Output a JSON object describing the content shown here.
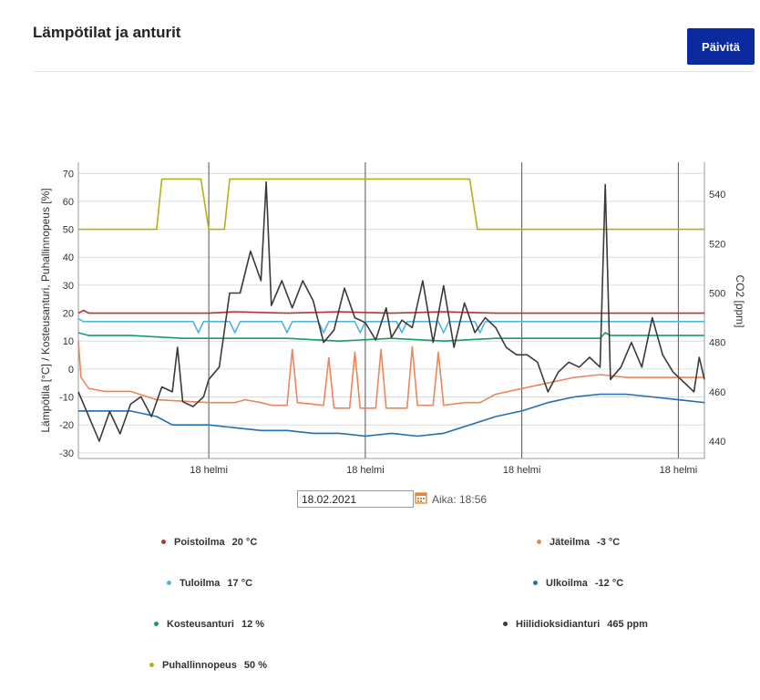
{
  "header": {
    "title": "Lämpötilat ja anturit",
    "refresh_label": "Päivitä"
  },
  "controls": {
    "date_value": "18.02.2021",
    "time_label": "Aika: 18:56",
    "calendar_icon": "calendar-icon"
  },
  "legend": [
    {
      "label": "Poistoilma",
      "value": "20 °C",
      "color": "#b5343c"
    },
    {
      "label": "Jäteilma",
      "value": "-3 °C",
      "color": "#f0845a"
    },
    {
      "label": "Tuloilma",
      "value": "17 °C",
      "color": "#4cb6e4"
    },
    {
      "label": "Ulkoilma",
      "value": "-12 °C",
      "color": "#1f6fb5"
    },
    {
      "label": "Kosteusanturi",
      "value": "12 %",
      "color": "#1a9a6a"
    },
    {
      "label": "Hiilidioksidianturi",
      "value": "465 ppm",
      "color": "#3a3a3a"
    },
    {
      "label": "Puhallinnopeus",
      "value": "50 %",
      "color": "#b5b01a"
    }
  ],
  "chart_data": {
    "type": "line",
    "ylabel_left": "Lämpötila [°C] / Kosteusanturi, Puhallinnopeus [%]",
    "ylabel_right": "CO2 [ppm]",
    "ylim_left": [
      -32,
      74
    ],
    "yticks_left": [
      -30,
      -20,
      -10,
      0,
      10,
      20,
      30,
      40,
      50,
      60,
      70
    ],
    "ylim_right": [
      433,
      553
    ],
    "yticks_right": [
      440,
      460,
      480,
      500,
      520,
      540
    ],
    "xlim": [
      0,
      120
    ],
    "xticks": [
      {
        "x": 25,
        "label": "18 helmi"
      },
      {
        "x": 55,
        "label": "18 helmi"
      },
      {
        "x": 85,
        "label": "18 helmi"
      },
      {
        "x": 115,
        "label": "18 helmi"
      }
    ],
    "series": [
      {
        "name": "Puhallinnopeus",
        "axis": "left",
        "color": "#b5b01a",
        "points": [
          [
            0,
            50
          ],
          [
            15,
            50
          ],
          [
            16,
            68
          ],
          [
            23.5,
            68
          ],
          [
            25,
            50
          ],
          [
            28,
            50
          ],
          [
            29,
            68
          ],
          [
            75,
            68
          ],
          [
            76.5,
            50
          ],
          [
            120,
            50
          ]
        ]
      },
      {
        "name": "Poistoilma",
        "axis": "left",
        "color": "#b5343c",
        "points": [
          [
            0,
            20
          ],
          [
            1,
            21
          ],
          [
            2,
            20
          ],
          [
            25,
            20
          ],
          [
            30,
            20.5
          ],
          [
            40,
            20
          ],
          [
            50,
            20.5
          ],
          [
            60,
            20
          ],
          [
            70,
            20.5
          ],
          [
            80,
            20
          ],
          [
            90,
            20
          ],
          [
            100,
            20
          ],
          [
            110,
            20
          ],
          [
            120,
            20
          ]
        ]
      },
      {
        "name": "Tuloilma",
        "axis": "left",
        "color": "#4cb6e4",
        "points": [
          [
            0,
            18
          ],
          [
            1,
            17
          ],
          [
            22,
            17
          ],
          [
            23,
            13
          ],
          [
            24,
            17
          ],
          [
            29,
            17
          ],
          [
            30,
            13
          ],
          [
            31,
            17
          ],
          [
            39,
            17
          ],
          [
            40,
            13
          ],
          [
            41,
            17
          ],
          [
            46,
            17
          ],
          [
            47,
            13
          ],
          [
            48,
            17
          ],
          [
            53,
            17
          ],
          [
            54,
            13
          ],
          [
            55,
            17
          ],
          [
            61,
            17
          ],
          [
            62,
            13
          ],
          [
            63,
            17
          ],
          [
            69,
            17
          ],
          [
            70,
            13
          ],
          [
            71,
            17
          ],
          [
            76,
            17
          ],
          [
            77,
            13
          ],
          [
            78,
            17
          ],
          [
            120,
            17
          ]
        ]
      },
      {
        "name": "Kosteusanturi",
        "axis": "left",
        "color": "#1a9a6a",
        "points": [
          [
            0,
            13
          ],
          [
            2,
            12
          ],
          [
            10,
            12
          ],
          [
            20,
            11
          ],
          [
            30,
            11
          ],
          [
            40,
            11
          ],
          [
            50,
            10
          ],
          [
            60,
            11
          ],
          [
            70,
            10
          ],
          [
            80,
            11
          ],
          [
            90,
            11
          ],
          [
            100,
            11
          ],
          [
            101,
            13
          ],
          [
            102,
            12
          ],
          [
            110,
            12
          ],
          [
            120,
            12
          ]
        ]
      },
      {
        "name": "Jäteilma",
        "axis": "left",
        "color": "#f0845a",
        "points": [
          [
            0,
            10
          ],
          [
            0.5,
            -3
          ],
          [
            2,
            -7
          ],
          [
            5,
            -8
          ],
          [
            10,
            -8
          ],
          [
            15,
            -11
          ],
          [
            25,
            -12
          ],
          [
            28,
            -12
          ],
          [
            30,
            -12
          ],
          [
            32,
            -11
          ],
          [
            35,
            -12
          ],
          [
            37,
            -13
          ],
          [
            40,
            -13
          ],
          [
            41,
            7
          ],
          [
            42,
            -12
          ],
          [
            47,
            -13
          ],
          [
            48,
            4
          ],
          [
            49,
            -14
          ],
          [
            52,
            -14
          ],
          [
            53,
            6
          ],
          [
            54,
            -14
          ],
          [
            57,
            -14
          ],
          [
            58,
            7
          ],
          [
            59,
            -14
          ],
          [
            63,
            -14
          ],
          [
            64,
            8
          ],
          [
            65,
            -13
          ],
          [
            68,
            -13
          ],
          [
            69,
            6
          ],
          [
            70,
            -13
          ],
          [
            74,
            -12
          ],
          [
            77,
            -12
          ],
          [
            80,
            -9
          ],
          [
            85,
            -7
          ],
          [
            90,
            -5
          ],
          [
            95,
            -3
          ],
          [
            100,
            -2
          ],
          [
            105,
            -3
          ],
          [
            110,
            -3
          ],
          [
            115,
            -3
          ],
          [
            120,
            -3
          ]
        ]
      },
      {
        "name": "Ulkoilma",
        "axis": "left",
        "color": "#1f6fb5",
        "points": [
          [
            0,
            -15
          ],
          [
            10,
            -15
          ],
          [
            15,
            -17
          ],
          [
            18,
            -20
          ],
          [
            25,
            -20
          ],
          [
            30,
            -21
          ],
          [
            35,
            -22
          ],
          [
            40,
            -22
          ],
          [
            45,
            -23
          ],
          [
            50,
            -23
          ],
          [
            55,
            -24
          ],
          [
            60,
            -23
          ],
          [
            65,
            -24
          ],
          [
            70,
            -23
          ],
          [
            75,
            -20
          ],
          [
            80,
            -17
          ],
          [
            85,
            -15
          ],
          [
            90,
            -12
          ],
          [
            95,
            -10
          ],
          [
            100,
            -9
          ],
          [
            105,
            -9
          ],
          [
            110,
            -10
          ],
          [
            115,
            -11
          ],
          [
            120,
            -12
          ]
        ]
      },
      {
        "name": "Hiilidioksidianturi",
        "axis": "right",
        "color": "#3a3a3a",
        "points": [
          [
            0,
            460
          ],
          [
            2,
            450
          ],
          [
            4,
            440
          ],
          [
            6,
            452
          ],
          [
            8,
            443
          ],
          [
            10,
            455
          ],
          [
            12,
            458
          ],
          [
            14,
            450
          ],
          [
            16,
            462
          ],
          [
            18,
            460
          ],
          [
            19,
            478
          ],
          [
            20,
            456
          ],
          [
            22,
            454
          ],
          [
            24,
            458
          ],
          [
            25,
            465
          ],
          [
            27,
            470
          ],
          [
            29,
            500
          ],
          [
            31,
            500
          ],
          [
            33,
            517
          ],
          [
            35,
            505
          ],
          [
            36,
            545
          ],
          [
            37,
            495
          ],
          [
            39,
            505
          ],
          [
            41,
            494
          ],
          [
            43,
            505
          ],
          [
            45,
            497
          ],
          [
            47,
            480
          ],
          [
            49,
            485
          ],
          [
            51,
            502
          ],
          [
            53,
            490
          ],
          [
            55,
            488
          ],
          [
            57,
            481
          ],
          [
            59,
            494
          ],
          [
            60,
            482
          ],
          [
            62,
            489
          ],
          [
            64,
            486
          ],
          [
            66,
            505
          ],
          [
            68,
            480
          ],
          [
            70,
            503
          ],
          [
            72,
            478
          ],
          [
            74,
            496
          ],
          [
            76,
            484
          ],
          [
            78,
            490
          ],
          [
            80,
            486
          ],
          [
            82,
            478
          ],
          [
            84,
            475
          ],
          [
            86,
            475
          ],
          [
            88,
            472
          ],
          [
            90,
            460
          ],
          [
            92,
            468
          ],
          [
            94,
            472
          ],
          [
            96,
            470
          ],
          [
            98,
            474
          ],
          [
            100,
            470
          ],
          [
            101,
            544
          ],
          [
            102,
            465
          ],
          [
            104,
            470
          ],
          [
            106,
            480
          ],
          [
            108,
            470
          ],
          [
            110,
            490
          ],
          [
            112,
            475
          ],
          [
            114,
            468
          ],
          [
            116,
            464
          ],
          [
            118,
            460
          ],
          [
            119,
            474
          ],
          [
            120,
            465
          ]
        ]
      }
    ]
  }
}
